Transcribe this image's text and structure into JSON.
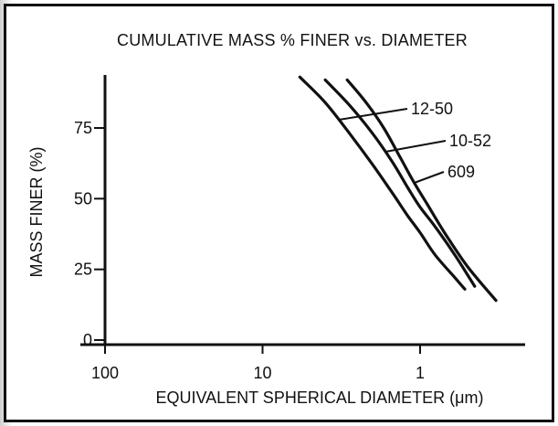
{
  "chart_data": {
    "type": "line",
    "title": "CUMULATIVE MASS % FINER vs. DIAMETER",
    "xlabel": "EQUIVALENT SPHERICAL DIAMETER (μm)",
    "ylabel": "MASS FINER (%)",
    "x_scale": "log-reversed",
    "xlim": [
      100,
      0.5
    ],
    "ylim": [
      0,
      95
    ],
    "x_ticks": [
      {
        "value": 100,
        "label": "100"
      },
      {
        "value": 10,
        "label": "10"
      },
      {
        "value": 1,
        "label": "1"
      }
    ],
    "y_ticks": [
      {
        "value": 0,
        "label": "0"
      },
      {
        "value": 25,
        "label": "25"
      },
      {
        "value": 50,
        "label": "50"
      },
      {
        "value": 75,
        "label": "75"
      }
    ],
    "grid": false,
    "series": [
      {
        "name": "12-50",
        "x": [
          5.8,
          4.0,
          2.8,
          2.0,
          1.5,
          1.2,
          1.0,
          0.8,
          0.6,
          0.52
        ],
        "y": [
          93,
          84,
          73,
          62,
          52,
          44,
          38,
          30,
          22,
          18
        ]
      },
      {
        "name": "10-52",
        "x": [
          4.0,
          2.8,
          2.0,
          1.5,
          1.2,
          1.0,
          0.8,
          0.6,
          0.45
        ],
        "y": [
          92,
          83,
          73,
          63,
          54,
          47,
          40,
          30,
          19
        ]
      },
      {
        "name": "609",
        "x": [
          2.9,
          2.2,
          1.7,
          1.35,
          1.1,
          0.9,
          0.7,
          0.5,
          0.33
        ],
        "y": [
          92,
          84,
          75,
          65,
          56,
          48,
          38,
          26,
          14
        ]
      }
    ]
  }
}
